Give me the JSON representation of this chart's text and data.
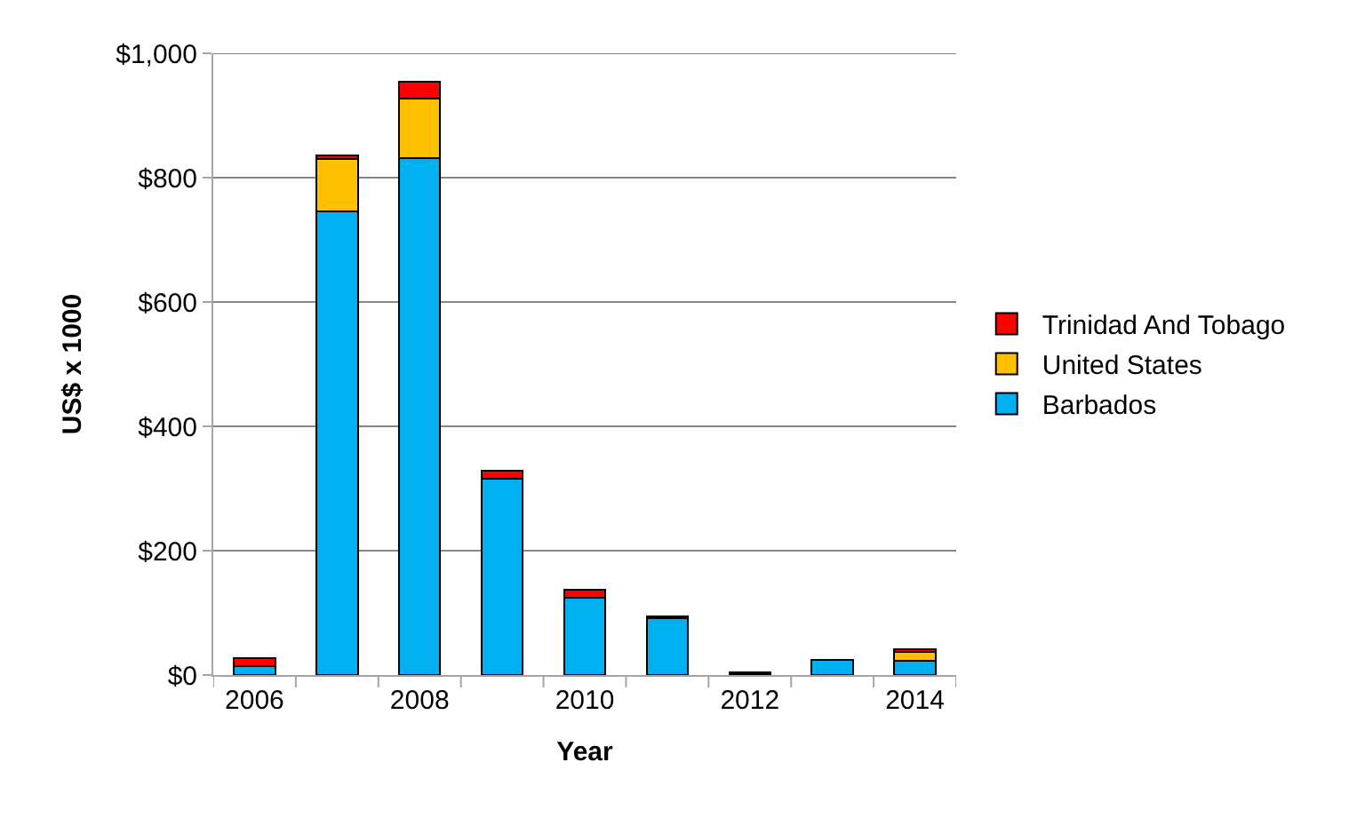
{
  "chart_data": {
    "type": "bar",
    "stacked": true,
    "xlabel": "Year",
    "ylabel": "US$ x 1000",
    "categories": [
      "2006",
      null,
      "2008",
      null,
      "2010",
      null,
      "2012",
      null,
      "2014"
    ],
    "series": [
      {
        "name": "Barbados",
        "color": "#00b0f0",
        "values": [
          14,
          746,
          831,
          316,
          124,
          91,
          2,
          24,
          23
        ]
      },
      {
        "name": "United States",
        "color": "#ffc000",
        "values": [
          null,
          84,
          96,
          null,
          null,
          null,
          null,
          null,
          14
        ]
      },
      {
        "name": "Trinidad And Tobago",
        "color": "#ff0000",
        "values": [
          13,
          6,
          28,
          12,
          13,
          3,
          3,
          null,
          5
        ]
      }
    ],
    "ylim": [
      0,
      1000
    ],
    "yticks": [
      {
        "value": 0,
        "label": "$0"
      },
      {
        "value": 200,
        "label": "$200"
      },
      {
        "value": 400,
        "label": "$400"
      },
      {
        "value": 600,
        "label": "$600"
      },
      {
        "value": 800,
        "label": "$800"
      },
      {
        "value": 1000,
        "label": "$1,000"
      }
    ],
    "grid": "y",
    "legend": "right"
  }
}
